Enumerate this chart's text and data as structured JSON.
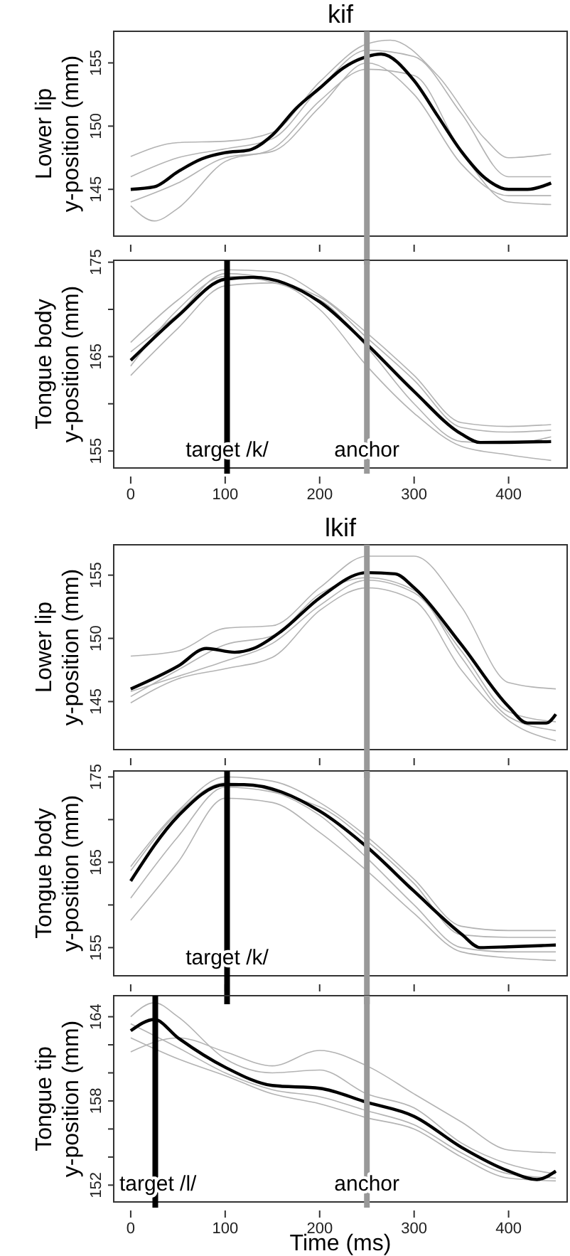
{
  "chart_data": [
    {
      "type": "line",
      "title": "kif",
      "ylabel": "Lower lip\ny-position (mm)",
      "xlim": [
        -18,
        462
      ],
      "xticks": [
        0,
        100,
        200,
        300,
        400
      ],
      "ylim": [
        141.3,
        157.5
      ],
      "yticks": [
        145,
        150,
        155
      ],
      "tick_labels": "y",
      "marker": "none",
      "line_style": "solid",
      "ref_lines": [
        {
          "axis": "x",
          "value": 250,
          "color": "#999999"
        }
      ],
      "series": [
        {
          "color": "#b3b3b3",
          "x": [
            0,
            50,
            100,
            150,
            200,
            250,
            275,
            325,
            375,
            400,
            445
          ],
          "values": [
            147.6,
            148.7,
            148.8,
            149.5,
            153.5,
            156.5,
            156.8,
            154,
            149,
            147.5,
            147.8
          ]
        },
        {
          "color": "#b3b3b3",
          "x": [
            0,
            25,
            50,
            100,
            150,
            200,
            250,
            300,
            350,
            400,
            445
          ],
          "values": [
            143.7,
            142.5,
            143.5,
            147.2,
            148.2,
            152,
            154.5,
            154,
            148,
            144,
            143.8
          ]
        },
        {
          "color": "#b3b3b3",
          "x": [
            0,
            50,
            100,
            150,
            200,
            250,
            300,
            350,
            400,
            445
          ],
          "values": [
            144,
            145.5,
            147.5,
            148,
            151.5,
            155,
            152.5,
            147,
            144.5,
            144.5
          ]
        },
        {
          "color": "#b3b3b3",
          "x": [
            0,
            50,
            100,
            150,
            200,
            250,
            300,
            350,
            400,
            445
          ],
          "values": [
            146,
            147.5,
            148.2,
            149,
            153,
            156,
            155.5,
            151,
            146,
            146
          ]
        },
        {
          "color": "#000000",
          "x": [
            0,
            25,
            50,
            75,
            100,
            125,
            150,
            175,
            200,
            225,
            250,
            265,
            300,
            325,
            350,
            375,
            400,
            420,
            445
          ],
          "values": [
            145,
            145.2,
            146.4,
            147.4,
            147.9,
            148.1,
            149.3,
            151.4,
            153,
            154.6,
            155.5,
            155.7,
            153.6,
            150.8,
            148,
            145.9,
            145,
            145,
            145.5
          ]
        }
      ]
    },
    {
      "type": "line",
      "ylabel": "Tongue body\ny-position (mm)",
      "xlim": [
        -18,
        462
      ],
      "xticks": [
        0,
        100,
        200,
        300,
        400
      ],
      "ylim": [
        153.2,
        175.2
      ],
      "yticks": [
        155,
        {
          "value": 160,
          "label": null
        },
        165,
        {
          "value": 170,
          "label": null
        },
        175
      ],
      "marker": "none",
      "line_style": "solid",
      "ref_lines": [
        {
          "axis": "x",
          "value": 102,
          "label": "target /k/",
          "color": "#000000"
        },
        {
          "axis": "x",
          "value": 250,
          "label": "anchor",
          "color": "#999999"
        }
      ],
      "series": [
        {
          "color": "#b3b3b3",
          "x": [
            0,
            50,
            100,
            150,
            200,
            250,
            300,
            350,
            400,
            445
          ],
          "values": [
            166.5,
            171,
            174.2,
            174,
            171.5,
            167.5,
            163,
            158,
            157.6,
            157.8
          ]
        },
        {
          "color": "#b3b3b3",
          "x": [
            0,
            50,
            100,
            150,
            200,
            250,
            300,
            350,
            400,
            445
          ],
          "values": [
            163,
            168,
            172.5,
            172.8,
            170,
            164,
            159,
            155.5,
            154.6,
            154
          ]
        },
        {
          "color": "#b3b3b3",
          "x": [
            0,
            50,
            100,
            200,
            250,
            300,
            350,
            400,
            445
          ],
          "values": [
            164,
            170,
            173.5,
            171,
            166,
            160,
            156,
            155.8,
            156.5
          ]
        },
        {
          "color": "#b3b3b3",
          "x": [
            0,
            50,
            100,
            200,
            250,
            300,
            350,
            400,
            445
          ],
          "values": [
            165.5,
            169.5,
            173.8,
            171.3,
            167,
            162.5,
            157.5,
            157,
            157.2
          ]
        },
        {
          "color": "#000000",
          "x": [
            0,
            50,
            100,
            130,
            200,
            250,
            300,
            350,
            370,
            445
          ],
          "values": [
            164.6,
            169.3,
            173.2,
            173.4,
            170.8,
            166.3,
            161.3,
            156.8,
            155.9,
            156
          ]
        }
      ]
    },
    {
      "type": "line",
      "title": "lkif",
      "ylabel": "Lower lip\ny-position (mm)",
      "xlim": [
        -18,
        462
      ],
      "xticks": [
        0,
        100,
        200,
        300,
        400
      ],
      "ylim": [
        141.2,
        157.4
      ],
      "yticks": [
        145,
        150,
        155
      ],
      "tick_labels": "y",
      "marker": "none",
      "line_style": "solid",
      "ref_lines": [
        {
          "axis": "x",
          "value": 250,
          "color": "#999999"
        }
      ],
      "series": [
        {
          "color": "#b3b3b3",
          "x": [
            0,
            50,
            100,
            150,
            200,
            250,
            300,
            350,
            400,
            450
          ],
          "values": [
            148.6,
            149,
            150.8,
            151,
            154,
            156.5,
            156.5,
            152.5,
            146.5,
            146
          ]
        },
        {
          "color": "#b3b3b3",
          "x": [
            0,
            50,
            100,
            150,
            200,
            250,
            300,
            350,
            400,
            450
          ],
          "values": [
            144.9,
            146.8,
            147.6,
            148.5,
            152.2,
            154,
            153,
            147.5,
            143.5,
            141.9
          ]
        },
        {
          "color": "#b3b3b3",
          "x": [
            0,
            50,
            100,
            150,
            200,
            250,
            300,
            350,
            400,
            450
          ],
          "values": [
            145.8,
            147,
            148.2,
            149.6,
            152.6,
            154.6,
            153.6,
            149,
            144.2,
            143.4
          ]
        },
        {
          "color": "#b3b3b3",
          "x": [
            0,
            50,
            100,
            150,
            200,
            250,
            300,
            350,
            400,
            450
          ],
          "values": [
            145.4,
            147.5,
            149.5,
            150.2,
            153.5,
            154.8,
            153.8,
            148.5,
            143.8,
            142.7
          ]
        },
        {
          "color": "#000000",
          "x": [
            0,
            50,
            80,
            110,
            130,
            160,
            200,
            250,
            280,
            300,
            350,
            400,
            420,
            440,
            450
          ],
          "values": [
            146,
            147.8,
            149.2,
            148.9,
            149.2,
            150.6,
            153.2,
            155.2,
            155.1,
            154,
            149.5,
            144.6,
            143.3,
            143.3,
            144
          ]
        }
      ]
    },
    {
      "type": "line",
      "ylabel": "Tongue body\ny-position (mm)",
      "xlim": [
        -18,
        462
      ],
      "xticks": [
        0,
        100,
        200,
        300,
        400
      ],
      "ylim": [
        151.7,
        175.7
      ],
      "yticks": [
        155,
        {
          "value": 160,
          "label": null
        },
        165,
        {
          "value": 170,
          "label": null
        },
        175
      ],
      "tick_labels": "y",
      "marker": "none",
      "line_style": "solid",
      "ref_lines": [
        {
          "axis": "x",
          "value": 102,
          "label": "target /k/",
          "color": "#000000"
        },
        {
          "axis": "x",
          "value": 250,
          "color": "#999999"
        }
      ],
      "series": [
        {
          "color": "#b3b3b3",
          "x": [
            0,
            50,
            100,
            150,
            200,
            250,
            300,
            350,
            400,
            450
          ],
          "values": [
            158.2,
            165,
            172.5,
            172,
            168.5,
            164,
            159,
            154.5,
            153.8,
            153.5
          ]
        },
        {
          "color": "#b3b3b3",
          "x": [
            0,
            50,
            100,
            150,
            200,
            250,
            300,
            350,
            400,
            450
          ],
          "values": [
            164.5,
            171,
            175,
            174.5,
            172,
            168,
            163,
            157.5,
            157,
            157
          ]
        },
        {
          "color": "#b3b3b3",
          "x": [
            0,
            50,
            100,
            200,
            250,
            300,
            350,
            400,
            450
          ],
          "values": [
            160.8,
            168,
            173.8,
            171.5,
            167.5,
            162.5,
            156.5,
            156.2,
            156.2
          ]
        },
        {
          "color": "#b3b3b3",
          "x": [
            0,
            50,
            100,
            200,
            250,
            300,
            350,
            400,
            450
          ],
          "values": [
            164,
            170.8,
            174.3,
            170.5,
            165.5,
            160,
            155,
            154.5,
            154.5
          ]
        },
        {
          "color": "#000000",
          "x": [
            0,
            50,
            100,
            120,
            200,
            250,
            300,
            350,
            370,
            400,
            450
          ],
          "values": [
            162.8,
            170.4,
            174.1,
            174.1,
            171,
            166.8,
            161.6,
            156.6,
            155,
            155.1,
            155.3
          ]
        }
      ]
    },
    {
      "type": "line",
      "ylabel": "Tongue tip\ny-position (mm)",
      "xlabel": "Time (ms)",
      "xlim": [
        -18,
        462
      ],
      "xticks": [
        0,
        100,
        200,
        300,
        400
      ],
      "ylim": [
        150.8,
        165.5
      ],
      "yticks": [
        152,
        {
          "value": 154,
          "label": null
        },
        {
          "value": 156,
          "label": null
        },
        158,
        {
          "value": 160,
          "label": null
        },
        {
          "value": 162,
          "label": null
        },
        164
      ],
      "marker": "none",
      "line_style": "solid",
      "ref_lines": [
        {
          "axis": "x",
          "value": 26,
          "label": "target /l/",
          "color": "#000000"
        },
        {
          "axis": "x",
          "value": 250,
          "label": "anchor",
          "color": "#999999"
        }
      ],
      "series": [
        {
          "color": "#b3b3b3",
          "x": [
            0,
            50,
            100,
            150,
            200,
            250,
            300,
            350,
            400,
            450
          ],
          "values": [
            161.5,
            162.5,
            161.5,
            160.5,
            161.6,
            160.5,
            158.5,
            156.5,
            154.5,
            154.3
          ]
        },
        {
          "color": "#b3b3b3",
          "x": [
            0,
            25,
            50,
            100,
            150,
            200,
            250,
            300,
            350,
            400,
            450
          ],
          "values": [
            164,
            165,
            164,
            161,
            160,
            160.2,
            158.5,
            157.5,
            155,
            153.5,
            152.8
          ]
        },
        {
          "color": "#b3b3b3",
          "x": [
            0,
            50,
            100,
            150,
            200,
            250,
            300,
            350,
            400,
            450
          ],
          "values": [
            162.5,
            161,
            159.8,
            158.5,
            157.8,
            156.8,
            156,
            154,
            152.5,
            152.3
          ]
        },
        {
          "color": "#b3b3b3",
          "x": [
            0,
            50,
            100,
            150,
            200,
            250,
            300,
            350,
            400,
            450
          ],
          "values": [
            163.5,
            161.8,
            160,
            158.8,
            158.3,
            157.3,
            156.3,
            154.3,
            152.8,
            152.5
          ]
        },
        {
          "color": "#000000",
          "x": [
            0,
            25,
            50,
            100,
            150,
            200,
            250,
            300,
            350,
            400,
            430,
            450
          ],
          "values": [
            163,
            163.8,
            162.5,
            160.4,
            159.1,
            158.9,
            157.9,
            156.9,
            154.7,
            153,
            152.4,
            153
          ]
        }
      ]
    }
  ]
}
